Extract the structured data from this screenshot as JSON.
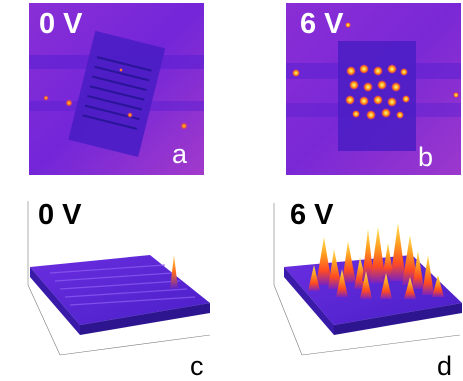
{
  "panels": [
    {
      "voltage": "0 V",
      "letter": "a"
    },
    {
      "voltage": "6 V",
      "letter": "b"
    },
    {
      "voltage": "0 V",
      "letter": "c"
    },
    {
      "voltage": "6 V",
      "letter": "d"
    }
  ],
  "colors": {
    "thermal_background": "#7a2bd8",
    "thermal_edge": "#9a2fd0",
    "hot_spot": "#ffd93a",
    "warm": "#ff6a1a",
    "cool": "#3a1fb0"
  }
}
